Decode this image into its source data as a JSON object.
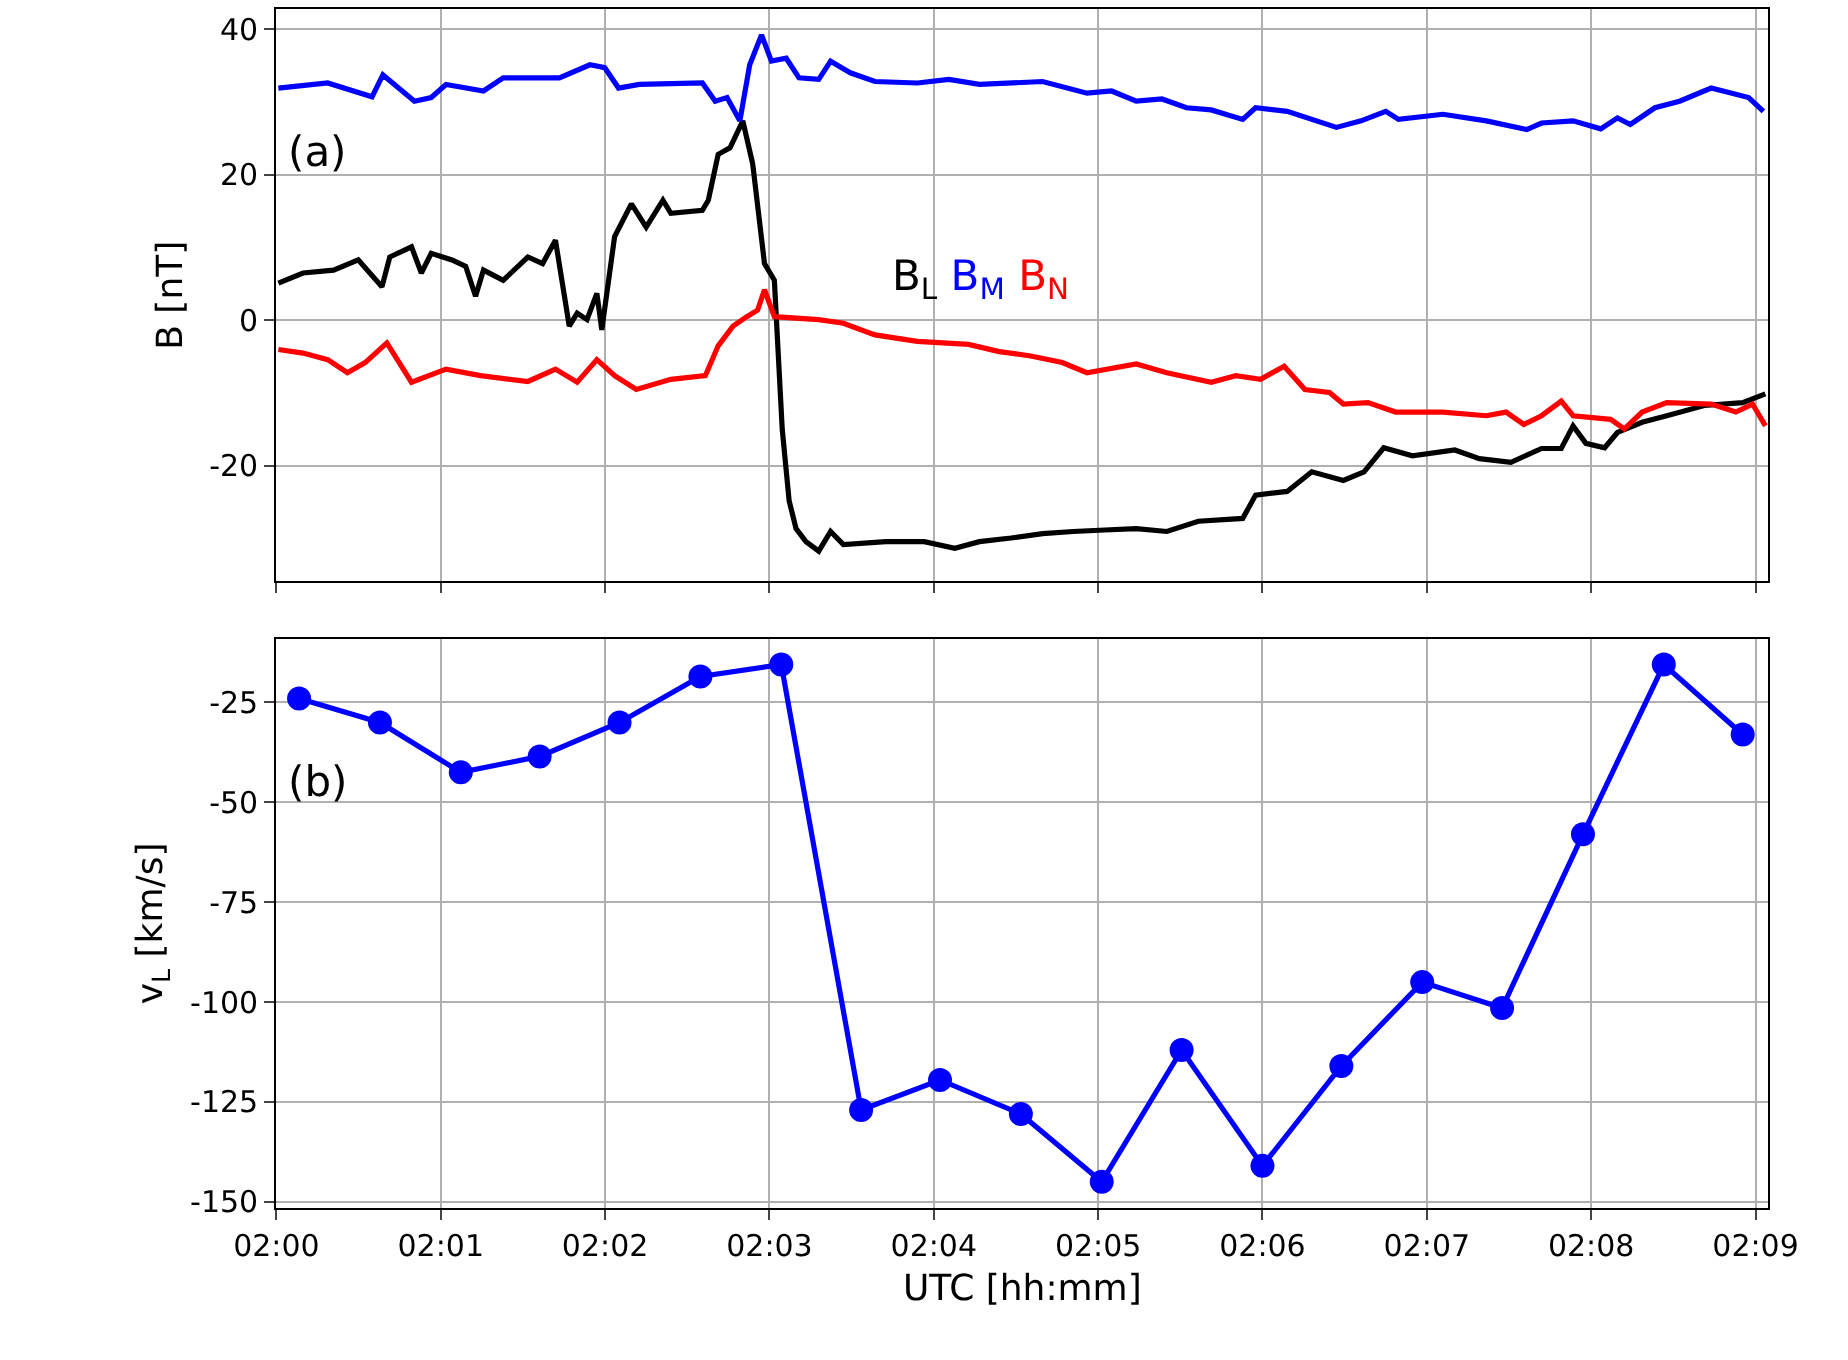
{
  "chart_data": [
    {
      "type": "line",
      "ylabel": "B [nT]",
      "annotations": [
        "(a)"
      ],
      "xlim": [
        2.0,
        2.1513
      ],
      "ylim": [
        -35.8,
        42.7
      ],
      "xticks": [
        {
          "value": 2.0,
          "label": null
        },
        {
          "value": 2.016667,
          "label": null
        },
        {
          "value": 2.033333,
          "label": null
        },
        {
          "value": 2.05,
          "label": null
        },
        {
          "value": 2.066667,
          "label": null
        },
        {
          "value": 2.083333,
          "label": null
        },
        {
          "value": 2.1,
          "label": null
        },
        {
          "value": 2.116667,
          "label": null
        },
        {
          "value": 2.133333,
          "label": null
        },
        {
          "value": 2.15,
          "label": null
        }
      ],
      "yticks": [
        -20,
        0,
        20,
        40
      ],
      "grid": true,
      "tick_labels": "y",
      "line_style": "solid",
      "series": [
        {
          "name": "B$_{L}$",
          "color": "#000000",
          "x": [
            2.0002,
            2.0027,
            2.0058,
            2.0083,
            2.0107,
            2.0115,
            2.0137,
            2.0147,
            2.0157,
            2.0178,
            2.0192,
            2.0202,
            2.021,
            2.023,
            2.0255,
            2.027,
            2.0283,
            2.0297,
            2.0305,
            2.0315,
            2.0325,
            2.033,
            2.0343,
            2.036,
            2.0375,
            2.0392,
            2.04,
            2.0432,
            2.0438,
            2.0448,
            2.046,
            2.0473,
            2.0483,
            2.0495,
            2.0505,
            2.0513,
            2.052,
            2.0527,
            2.0537,
            2.055,
            2.0562,
            2.0575,
            2.0618,
            2.0657,
            2.0688,
            2.0713,
            2.0745,
            2.0777,
            2.0808,
            2.084,
            2.0872,
            2.0903,
            2.0935,
            2.098,
            2.0993,
            2.1025,
            2.105,
            2.1082,
            2.1103,
            2.1123,
            2.1152,
            2.1195,
            2.122,
            2.1252,
            2.1283,
            2.1303,
            2.1315,
            2.1328,
            2.1347,
            2.136,
            2.1385,
            2.141,
            2.1448,
            2.1487,
            2.151
          ],
          "values": [
            5.1,
            6.5,
            6.9,
            8.3,
            4.6,
            8.7,
            10.1,
            6.5,
            9.2,
            8.3,
            7.4,
            3.3,
            6.9,
            5.5,
            8.7,
            7.8,
            11.0,
            -0.8,
            1.0,
            0.1,
            3.7,
            -1.3,
            11.5,
            16.0,
            12.8,
            16.5,
            14.7,
            15.1,
            16.5,
            22.8,
            23.7,
            27.4,
            21.5,
            7.8,
            5.5,
            -15,
            -24.8,
            -28.6,
            -30.4,
            -31.7,
            -29.0,
            -30.8,
            -30.4,
            -30.4,
            -31.3,
            -30.4,
            -29.9,
            -29.3,
            -29.0,
            -28.8,
            -28.6,
            -29.0,
            -27.6,
            -27.2,
            -24.0,
            -23.5,
            -20.8,
            -22.0,
            -20.8,
            -17.5,
            -18.6,
            -17.8,
            -19.0,
            -19.5,
            -17.6,
            -17.6,
            -14.5,
            -16.9,
            -17.5,
            -15.4,
            -14.0,
            -13.1,
            -11.7,
            -11.3,
            -10.1
          ]
        },
        {
          "name": "B$_{M}$",
          "color": "#0000ff",
          "x": [
            2.0002,
            2.0052,
            2.0097,
            2.0108,
            2.014,
            2.0157,
            2.0172,
            2.021,
            2.023,
            2.0287,
            2.0318,
            2.0333,
            2.0347,
            2.0368,
            2.0432,
            2.0445,
            2.0457,
            2.047,
            2.048,
            2.0492,
            2.0502,
            2.0517,
            2.053,
            2.055,
            2.0562,
            2.0582,
            2.0607,
            2.065,
            2.0682,
            2.0713,
            2.0777,
            2.0822,
            2.0847,
            2.0872,
            2.0898,
            2.0923,
            2.0948,
            2.098,
            2.0993,
            2.1025,
            2.1075,
            2.11,
            2.1125,
            2.1138,
            2.1183,
            2.1227,
            2.1268,
            2.1283,
            2.1315,
            2.1343,
            2.136,
            2.1373,
            2.1398,
            2.1423,
            2.1455,
            2.1473,
            2.1493,
            2.1508
          ],
          "values": [
            31.9,
            32.6,
            30.7,
            33.7,
            30.1,
            30.6,
            32.4,
            31.5,
            33.3,
            33.3,
            35.1,
            34.7,
            31.9,
            32.4,
            32.6,
            30.1,
            30.6,
            27.4,
            35.1,
            39.2,
            35.6,
            36.0,
            33.3,
            33.1,
            35.6,
            34.0,
            32.8,
            32.6,
            33.1,
            32.4,
            32.8,
            31.2,
            31.5,
            30.1,
            30.4,
            29.2,
            28.9,
            27.6,
            29.2,
            28.7,
            26.5,
            27.4,
            28.7,
            27.6,
            28.3,
            27.4,
            26.2,
            27.1,
            27.4,
            26.3,
            27.8,
            26.9,
            29.2,
            30.1,
            31.9,
            31.3,
            30.6,
            28.7
          ]
        },
        {
          "name": "B$_{N}$",
          "color": "#ff0000",
          "x": [
            2.0002,
            2.0027,
            2.0052,
            2.0072,
            2.009,
            2.0112,
            2.0137,
            2.0172,
            2.0207,
            2.0255,
            2.0283,
            2.0305,
            2.0325,
            2.0343,
            2.0365,
            2.04,
            2.0435,
            2.0448,
            2.0463,
            2.0477,
            2.0488,
            2.0495,
            2.0505,
            2.055,
            2.0575,
            2.0607,
            2.065,
            2.0702,
            2.0733,
            2.0765,
            2.0797,
            2.0822,
            2.0872,
            2.0903,
            2.0948,
            2.0973,
            2.0998,
            2.1022,
            2.1043,
            2.1068,
            2.1082,
            2.1107,
            2.1135,
            2.1183,
            2.1227,
            2.1247,
            2.1265,
            2.1283,
            2.1303,
            2.1315,
            2.1353,
            2.1367,
            2.1385,
            2.141,
            2.1455,
            2.148,
            2.1497,
            2.151
          ],
          "values": [
            -4.0,
            -4.5,
            -5.4,
            -7.2,
            -5.8,
            -3.1,
            -8.5,
            -6.7,
            -7.6,
            -8.4,
            -6.7,
            -8.5,
            -5.4,
            -7.6,
            -9.5,
            -8.1,
            -7.6,
            -3.5,
            -0.8,
            0.5,
            1.4,
            4.2,
            0.5,
            0.1,
            -0.4,
            -2.0,
            -2.9,
            -3.3,
            -4.3,
            -4.9,
            -5.8,
            -7.2,
            -6.0,
            -7.2,
            -8.5,
            -7.6,
            -8.1,
            -6.3,
            -9.5,
            -9.9,
            -11.5,
            -11.3,
            -12.6,
            -12.6,
            -13.1,
            -12.6,
            -14.3,
            -13.1,
            -11.1,
            -13.1,
            -13.6,
            -14.9,
            -12.6,
            -11.3,
            -11.5,
            -12.6,
            -11.5,
            -14.5
          ]
        }
      ]
    },
    {
      "type": "line",
      "xlabel": "UTC [hh:mm]",
      "ylabel": "v$_{L}$ [km/s]",
      "annotations": [
        "(b)"
      ],
      "xlim": [
        2.0,
        2.1513
      ],
      "ylim": [
        -151.5,
        -9.1
      ],
      "xticks": [
        {
          "value": 2.0,
          "label": "02:00"
        },
        {
          "value": 2.016667,
          "label": "02:01"
        },
        {
          "value": 2.033333,
          "label": "02:02"
        },
        {
          "value": 2.05,
          "label": "02:03"
        },
        {
          "value": 2.066667,
          "label": "02:04"
        },
        {
          "value": 2.083333,
          "label": "02:05"
        },
        {
          "value": 2.1,
          "label": "02:06"
        },
        {
          "value": 2.116667,
          "label": "02:07"
        },
        {
          "value": 2.133333,
          "label": "02:08"
        },
        {
          "value": 2.15,
          "label": "02:09"
        }
      ],
      "yticks": [
        -150,
        -125,
        -100,
        -75,
        -50,
        -25
      ],
      "grid": true,
      "marker": "circle",
      "line_style": "solid",
      "x": [
        2.0023,
        2.0105,
        2.0187,
        2.0267,
        2.0348,
        2.043,
        2.0512,
        2.0593,
        2.0673,
        2.0755,
        2.0837,
        2.0918,
        2.1,
        2.108,
        2.1162,
        2.1243,
        2.1325,
        2.1407,
        2.1487
      ],
      "series": [
        {
          "color": "#0000ff",
          "values": [
            -24,
            -30,
            -42.5,
            -38.5,
            -30,
            -18.5,
            -15.5,
            -127,
            -119.5,
            -128,
            -145,
            -112,
            -141,
            -116,
            -95,
            -101.5,
            -58,
            -15.5,
            -33
          ]
        }
      ]
    }
  ]
}
